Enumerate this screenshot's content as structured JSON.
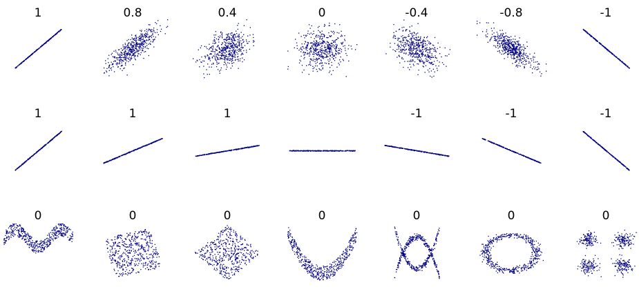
{
  "chart_data": {
    "type": "scatter",
    "point_color": "#000080",
    "background": "#ffffff",
    "grid": false,
    "rows": [
      {
        "panels": [
          {
            "label": "1",
            "pattern": "line",
            "slope": 1
          },
          {
            "label": "0.8",
            "pattern": "gaussian",
            "correlation": 0.8
          },
          {
            "label": "0.4",
            "pattern": "gaussian",
            "correlation": 0.4
          },
          {
            "label": "0",
            "pattern": "gaussian",
            "correlation": 0
          },
          {
            "label": "-0.4",
            "pattern": "gaussian",
            "correlation": -0.4
          },
          {
            "label": "-0.8",
            "pattern": "gaussian",
            "correlation": -0.8
          },
          {
            "label": "-1",
            "pattern": "line",
            "slope": -1
          }
        ]
      },
      {
        "panels": [
          {
            "label": "1",
            "pattern": "line",
            "slope": 1
          },
          {
            "label": "1",
            "pattern": "line",
            "slope": 0.5
          },
          {
            "label": "1",
            "pattern": "line",
            "slope": 0.2
          },
          {
            "label": "",
            "pattern": "line",
            "slope": 0
          },
          {
            "label": "-1",
            "pattern": "line",
            "slope": -0.2
          },
          {
            "label": "-1",
            "pattern": "line",
            "slope": -0.5
          },
          {
            "label": "-1",
            "pattern": "line",
            "slope": -1
          }
        ]
      },
      {
        "panels": [
          {
            "label": "0",
            "pattern": "wave"
          },
          {
            "label": "0",
            "pattern": "rotated-square"
          },
          {
            "label": "0",
            "pattern": "diamond"
          },
          {
            "label": "0",
            "pattern": "parabola"
          },
          {
            "label": "0",
            "pattern": "cross"
          },
          {
            "label": "0",
            "pattern": "ring"
          },
          {
            "label": "0",
            "pattern": "four-clusters"
          }
        ]
      }
    ]
  }
}
